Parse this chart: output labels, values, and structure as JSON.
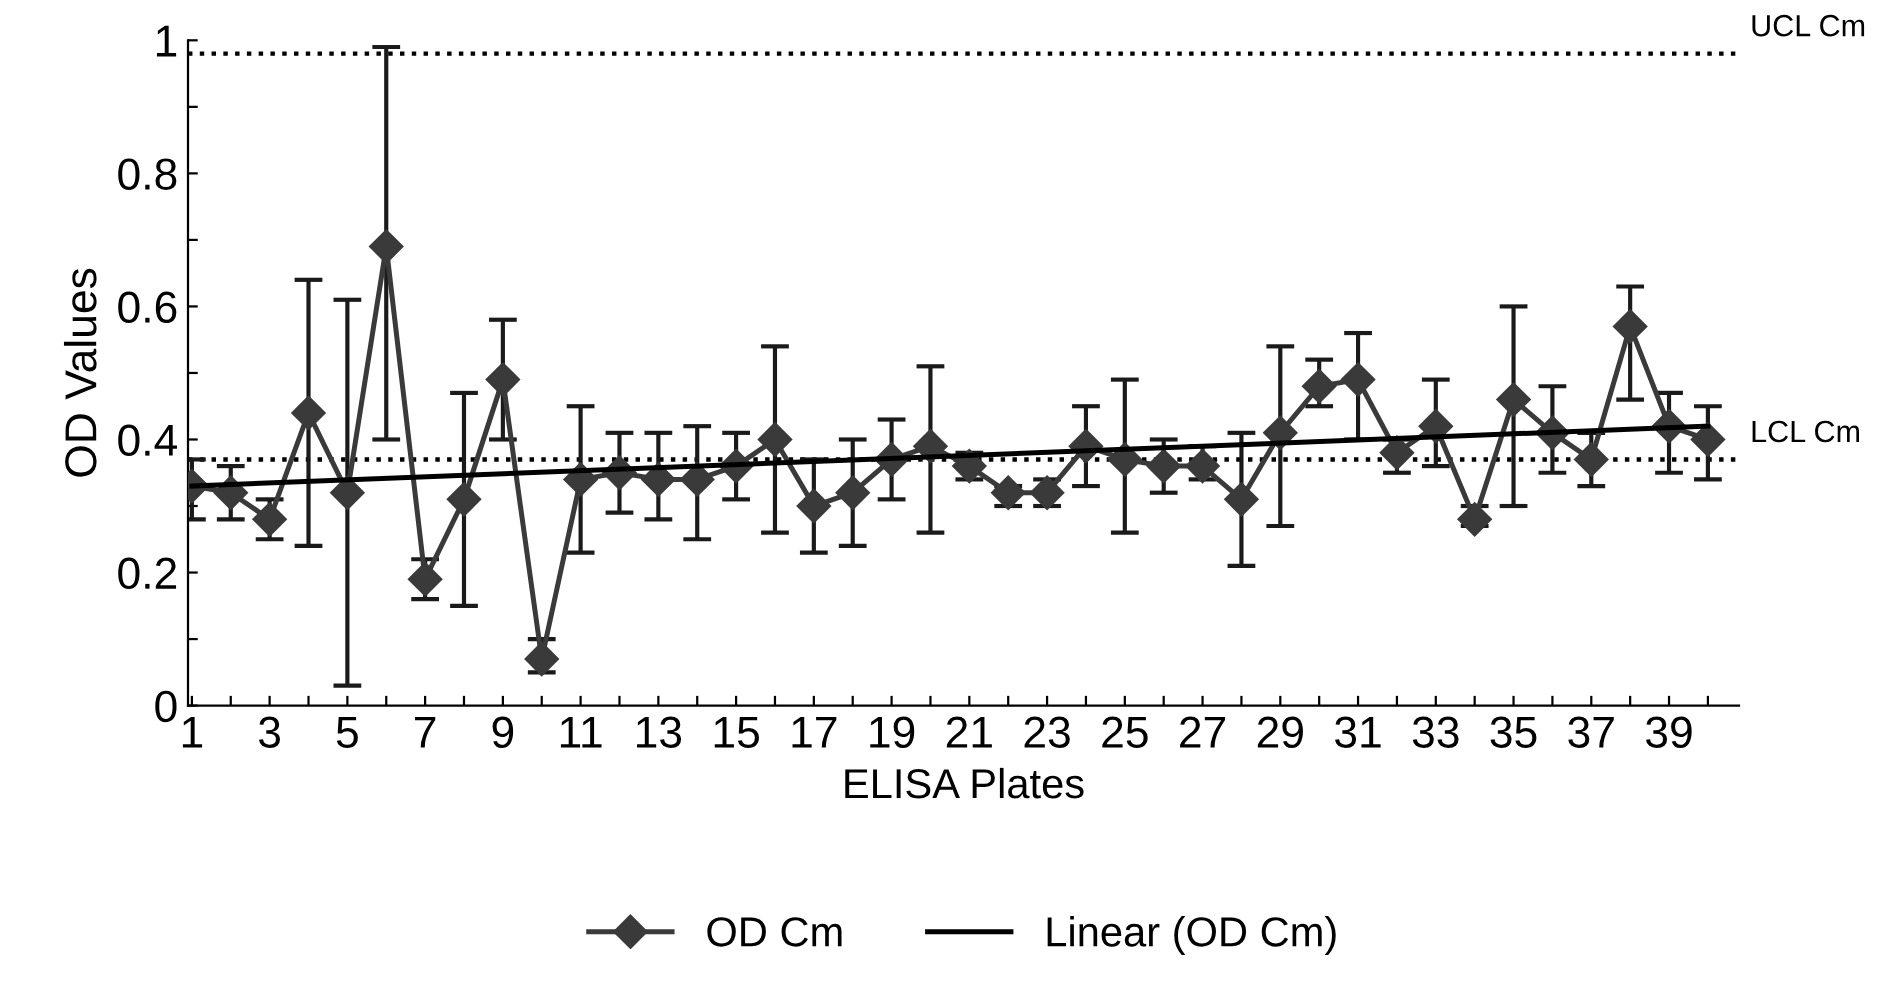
{
  "chart_data": {
    "type": "line",
    "xlabel": "ELISA Plates",
    "ylabel": "OD Values",
    "x": [
      1,
      2,
      3,
      4,
      5,
      6,
      7,
      8,
      9,
      10,
      11,
      12,
      13,
      14,
      15,
      16,
      17,
      18,
      19,
      20,
      21,
      22,
      23,
      24,
      25,
      26,
      27,
      28,
      29,
      30,
      31,
      32,
      33,
      34,
      35,
      36,
      37,
      38,
      39,
      40
    ],
    "xlim": [
      0.9,
      40.8
    ],
    "xticks": [
      1,
      {
        "value": 2,
        "label": null
      },
      3,
      {
        "value": 4,
        "label": null
      },
      5,
      {
        "value": 6,
        "label": null
      },
      7,
      {
        "value": 8,
        "label": null
      },
      9,
      {
        "value": 10,
        "label": null
      },
      11,
      {
        "value": 12,
        "label": null
      },
      13,
      {
        "value": 14,
        "label": null
      },
      15,
      {
        "value": 16,
        "label": null
      },
      17,
      {
        "value": 18,
        "label": null
      },
      19,
      {
        "value": 20,
        "label": null
      },
      21,
      {
        "value": 22,
        "label": null
      },
      23,
      {
        "value": 24,
        "label": null
      },
      25,
      {
        "value": 26,
        "label": null
      },
      27,
      {
        "value": 28,
        "label": null
      },
      29,
      {
        "value": 30,
        "label": null
      },
      31,
      {
        "value": 32,
        "label": null
      },
      33,
      {
        "value": 34,
        "label": null
      },
      35,
      {
        "value": 36,
        "label": null
      },
      37,
      {
        "value": 38,
        "label": null
      },
      39,
      {
        "value": 40,
        "label": null
      }
    ],
    "ylim": [
      0,
      1
    ],
    "yticks": [
      0,
      {
        "value": 0.1,
        "label": null
      },
      0.2,
      {
        "value": 0.3,
        "label": null
      },
      0.4,
      {
        "value": 0.5,
        "label": null
      },
      0.6,
      {
        "value": 0.7,
        "label": null
      },
      0.8,
      {
        "value": 0.9,
        "label": null
      },
      1
    ],
    "grid": false,
    "legend": "bottom",
    "series": [
      {
        "name": "OD Cm",
        "color": "#3a3a3a",
        "marker": "diamond",
        "line_style": "solid",
        "values": [
          0.33,
          0.32,
          0.28,
          0.44,
          0.32,
          0.69,
          0.19,
          0.31,
          0.49,
          0.07,
          0.34,
          0.35,
          0.34,
          0.34,
          0.36,
          0.4,
          0.3,
          0.32,
          0.37,
          0.39,
          0.36,
          0.32,
          0.32,
          0.39,
          0.37,
          0.36,
          0.36,
          0.31,
          0.41,
          0.48,
          0.49,
          0.38,
          0.42,
          0.28,
          0.46,
          0.41,
          0.37,
          0.57,
          0.42,
          0.4
        ],
        "errors": [
          [
            0.28,
            0.37
          ],
          [
            0.28,
            0.36
          ],
          [
            0.25,
            0.31
          ],
          [
            0.24,
            0.64
          ],
          [
            0.03,
            0.61
          ],
          [
            0.4,
            0.99
          ],
          [
            0.16,
            0.22
          ],
          [
            0.15,
            0.47
          ],
          [
            0.4,
            0.58
          ],
          [
            0.05,
            0.1
          ],
          [
            0.23,
            0.45
          ],
          [
            0.29,
            0.41
          ],
          [
            0.28,
            0.41
          ],
          [
            0.25,
            0.42
          ],
          [
            0.31,
            0.41
          ],
          [
            0.26,
            0.54
          ],
          [
            0.23,
            0.37
          ],
          [
            0.24,
            0.4
          ],
          [
            0.31,
            0.43
          ],
          [
            0.26,
            0.51
          ],
          [
            0.34,
            0.38
          ],
          [
            0.3,
            0.33
          ],
          [
            0.3,
            0.34
          ],
          [
            0.33,
            0.45
          ],
          [
            0.26,
            0.49
          ],
          [
            0.32,
            0.4
          ],
          [
            0.34,
            0.39
          ],
          [
            0.21,
            0.41
          ],
          [
            0.27,
            0.54
          ],
          [
            0.45,
            0.52
          ],
          [
            0.4,
            0.56
          ],
          [
            0.35,
            0.4
          ],
          [
            0.36,
            0.49
          ],
          [
            0.27,
            0.3
          ],
          [
            0.3,
            0.6
          ],
          [
            0.35,
            0.48
          ],
          [
            0.33,
            0.41
          ],
          [
            0.46,
            0.63
          ],
          [
            0.35,
            0.47
          ],
          [
            0.34,
            0.45
          ]
        ]
      },
      {
        "name": "Linear (OD Cm)",
        "color": "#000000",
        "marker": "none",
        "line_style": "solid",
        "x": [
          1,
          40
        ],
        "values": [
          0.33,
          0.42
        ]
      }
    ],
    "ref_lines": [
      {
        "axis": "y",
        "value": 0.98,
        "label": "UCL Cm",
        "color": "#000000",
        "line_style": "dotted"
      },
      {
        "axis": "y",
        "value": 0.37,
        "label": "LCL Cm",
        "color": "#000000",
        "line_style": "dotted"
      }
    ]
  }
}
